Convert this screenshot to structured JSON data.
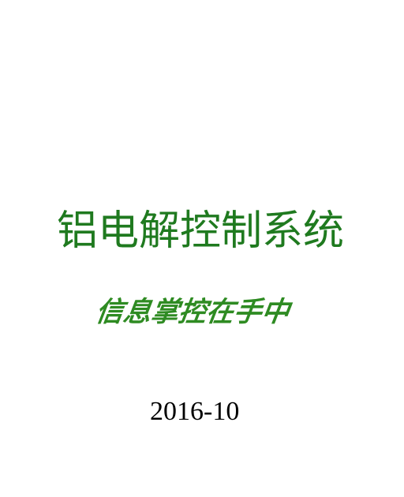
{
  "cover": {
    "title": "铝电解控制系统",
    "slogan": "信息掌控在手中",
    "date": "2016-10"
  },
  "colors": {
    "title": "#1f7a1f",
    "slogan": "#2e8b22",
    "date": "#000000",
    "background": "#ffffff"
  }
}
